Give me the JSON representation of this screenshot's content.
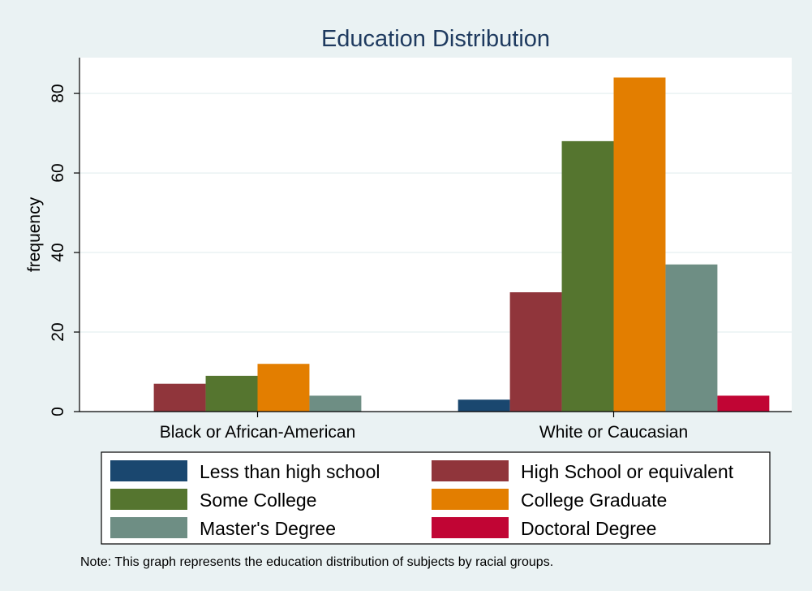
{
  "chart_data": {
    "type": "bar",
    "title": "Education Distribution",
    "xlabel": "",
    "ylabel": "frequency",
    "ylim": [
      0,
      89
    ],
    "yticks": [
      0,
      20,
      40,
      60,
      80
    ],
    "categories": [
      "Black or African-American",
      "White or Caucasian"
    ],
    "series": [
      {
        "name": "Less than high school",
        "color": "#1a476f",
        "values": [
          0,
          3
        ]
      },
      {
        "name": "High School or equivalent",
        "color": "#90353b",
        "values": [
          7,
          30
        ]
      },
      {
        "name": "Some College",
        "color": "#55752f",
        "values": [
          9,
          68
        ]
      },
      {
        "name": "College Graduate",
        "color": "#e37e00",
        "values": [
          12,
          84
        ]
      },
      {
        "name": "Master's Degree",
        "color": "#6e8e84",
        "values": [
          4,
          37
        ]
      },
      {
        "name": "Doctoral Degree",
        "color": "#c10534",
        "values": [
          0,
          4
        ]
      }
    ],
    "grid": true,
    "legend_position": "bottom",
    "note": "Note: This graph represents the education distribution of subjects by racial groups."
  }
}
